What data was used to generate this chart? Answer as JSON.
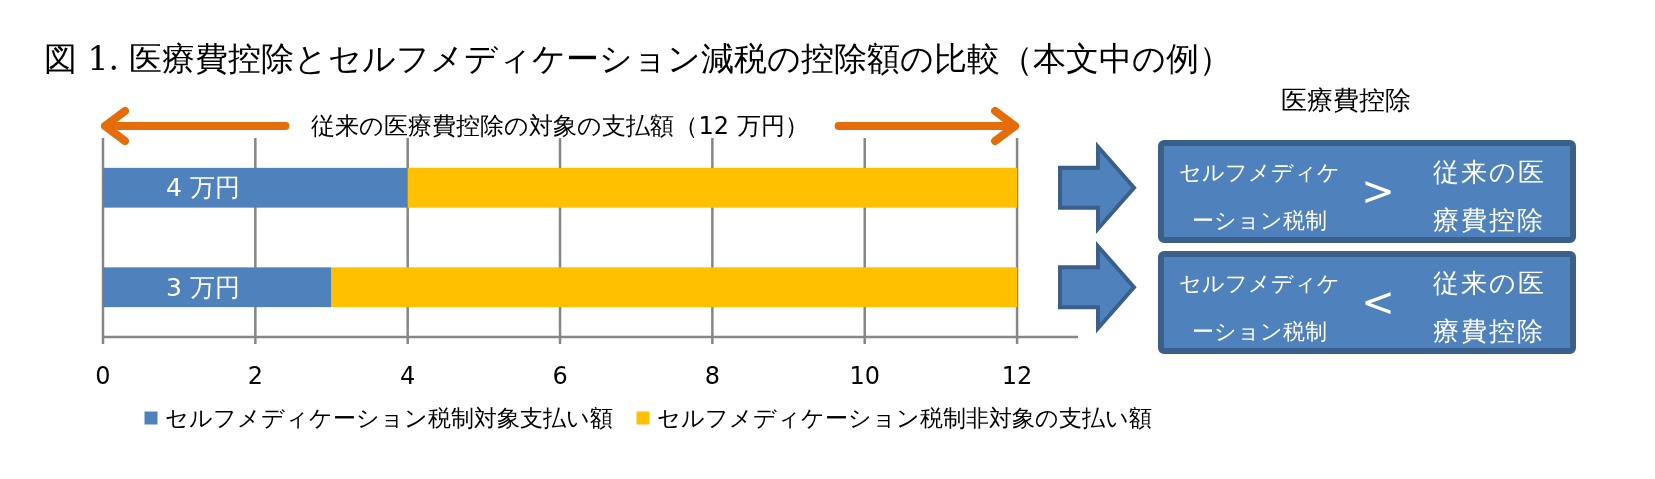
{
  "chart_data": {
    "type": "bar",
    "orientation": "horizontal",
    "stacked": true,
    "title": "図 1. 医療費控除とセルフメディケーション減税の控除額の比較（本文中の例）",
    "categories": [
      null,
      null
    ],
    "series": [
      {
        "name": "セルフメディケーション税制対象支払い額",
        "color": "#4f81bd",
        "values": [
          4,
          3
        ],
        "value_labels": [
          "4 万円",
          "3 万円"
        ]
      },
      {
        "name": "セルフメディケーション税制非対象の支払い額",
        "color": "#ffc000",
        "values": [
          8,
          9
        ]
      }
    ],
    "xlim": [
      0,
      12.8
    ],
    "xticks": [
      0,
      2,
      4,
      6,
      8,
      10,
      12
    ],
    "grid": "x",
    "legend": "bottom",
    "annotations": [
      "従来の医療費控除の対象の支払額（12 万円）",
      "医療費控除",
      "セルフメディケーション税制",
      ">",
      "従来の医療費控除",
      "セルフメディケーション税制",
      "<",
      "従来の医療費控除"
    ]
  }
}
